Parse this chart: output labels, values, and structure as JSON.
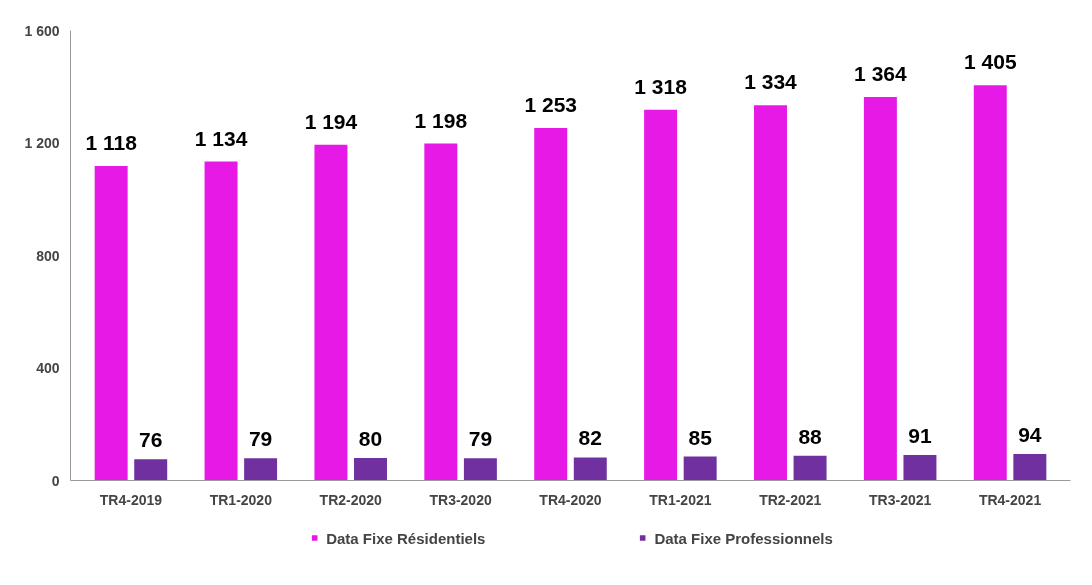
{
  "chart_data": {
    "type": "bar",
    "categories": [
      "TR4-2019",
      "TR1-2020",
      "TR2-2020",
      "TR3-2020",
      "TR4-2020",
      "TR1-2021",
      "TR2-2021",
      "TR3-2021",
      "TR4-2021"
    ],
    "series": [
      {
        "name": "Data Fixe Résidentiels",
        "color": "#e619e6",
        "values": [
          1118,
          1134,
          1194,
          1198,
          1253,
          1318,
          1334,
          1364,
          1405
        ],
        "value_labels": [
          "1 118",
          "1 134",
          "1 194",
          "1 198",
          "1 253",
          "1 318",
          "1 334",
          "1 364",
          "1 405"
        ]
      },
      {
        "name": "Data Fixe Professionnels",
        "color": "#7030a0",
        "values": [
          76,
          79,
          80,
          79,
          82,
          85,
          88,
          91,
          94
        ],
        "value_labels": [
          "76",
          "79",
          "80",
          "79",
          "82",
          "85",
          "88",
          "91",
          "94"
        ]
      }
    ],
    "ylim": [
      0,
      1600
    ],
    "yticks": [
      0,
      400,
      800,
      {
        "value": 1200,
        "label": "1 200"
      },
      {
        "value": 1600,
        "label": "1 600"
      }
    ],
    "grid": false,
    "legend": "bottom"
  }
}
